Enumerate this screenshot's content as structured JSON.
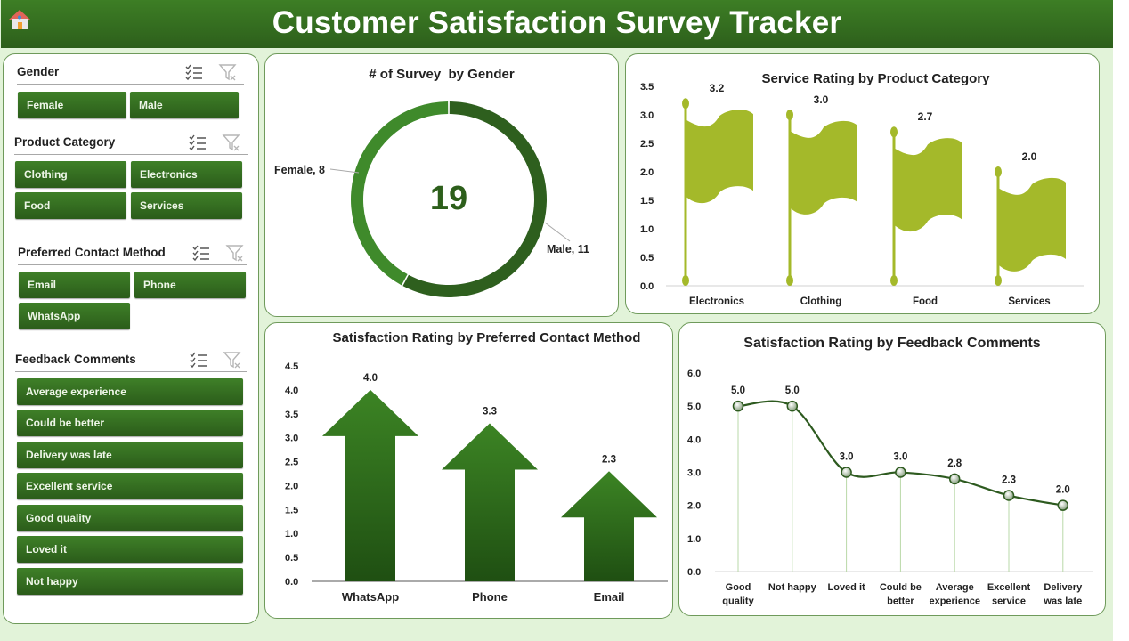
{
  "header": {
    "title": "Customer Satisfaction Survey Tracker",
    "home_icon": "home-icon"
  },
  "slicers": {
    "gender": {
      "label": "Gender",
      "items": [
        "Female",
        "Male"
      ]
    },
    "product_category": {
      "label": "Product Category",
      "items": [
        "Clothing",
        "Electronics",
        "Food",
        "Services"
      ]
    },
    "contact_method": {
      "label": "Preferred Contact Method",
      "items": [
        "Email",
        "Phone",
        "WhatsApp"
      ]
    },
    "feedback_comments": {
      "label": "Feedback Comments",
      "items": [
        "Average experience",
        "Could be better",
        "Delivery was late",
        "Excellent service",
        "Good quality",
        "Loved it",
        "Not happy"
      ]
    }
  },
  "colors": {
    "brand": "#2d5f1b",
    "accent": "#3d7e25",
    "flag": "#a4b92a",
    "background": "#e2f3d9"
  },
  "chart_data": [
    {
      "type": "pie",
      "subtype": "donut",
      "title": "# of Survey  by Gender",
      "center_label": "19",
      "categories": [
        "Female",
        "Male"
      ],
      "values": [
        8,
        11
      ],
      "data_labels": [
        "Female, 8",
        "Male, 11"
      ]
    },
    {
      "type": "bar",
      "title": "Service Rating by Product Category",
      "categories": [
        "Electronics",
        "Clothing",
        "Food",
        "Services"
      ],
      "values": [
        3.2,
        3.0,
        2.7,
        2.0
      ],
      "data_labels": [
        "3.2",
        "3.0",
        "2.7",
        "2.0"
      ],
      "yticks": [
        "0.0",
        "0.5",
        "1.0",
        "1.5",
        "2.0",
        "2.5",
        "3.0",
        "3.5"
      ],
      "ylim": [
        0,
        3.5
      ],
      "xlabel": "",
      "ylabel": ""
    },
    {
      "type": "bar",
      "title": "Satisfaction Rating by Preferred Contact Method",
      "categories": [
        "WhatsApp",
        "Phone",
        "Email"
      ],
      "values": [
        4.0,
        3.3,
        2.3
      ],
      "data_labels": [
        "4.0",
        "3.3",
        "2.3"
      ],
      "yticks": [
        "0.0",
        "0.5",
        "1.0",
        "1.5",
        "2.0",
        "2.5",
        "3.0",
        "3.5",
        "4.0",
        "4.5"
      ],
      "ylim": [
        0,
        4.5
      ],
      "xlabel": "",
      "ylabel": ""
    },
    {
      "type": "line",
      "title": "Satisfaction Rating by Feedback Comments",
      "categories": [
        [
          "Good",
          "quality"
        ],
        [
          "Not happy"
        ],
        [
          "Loved it"
        ],
        [
          "Could be",
          "better"
        ],
        [
          "Average",
          "experience"
        ],
        [
          "Excellent",
          "service"
        ],
        [
          "Delivery",
          "was late"
        ]
      ],
      "values": [
        5.0,
        5.0,
        3.0,
        3.0,
        2.8,
        2.3,
        2.0
      ],
      "data_labels": [
        "5.0",
        "5.0",
        "3.0",
        "3.0",
        "2.8",
        "2.3",
        "2.0"
      ],
      "yticks": [
        "0.0",
        "1.0",
        "2.0",
        "3.0",
        "4.0",
        "5.0",
        "6.0"
      ],
      "ylim": [
        0,
        6
      ],
      "xlabel": "",
      "ylabel": ""
    }
  ]
}
